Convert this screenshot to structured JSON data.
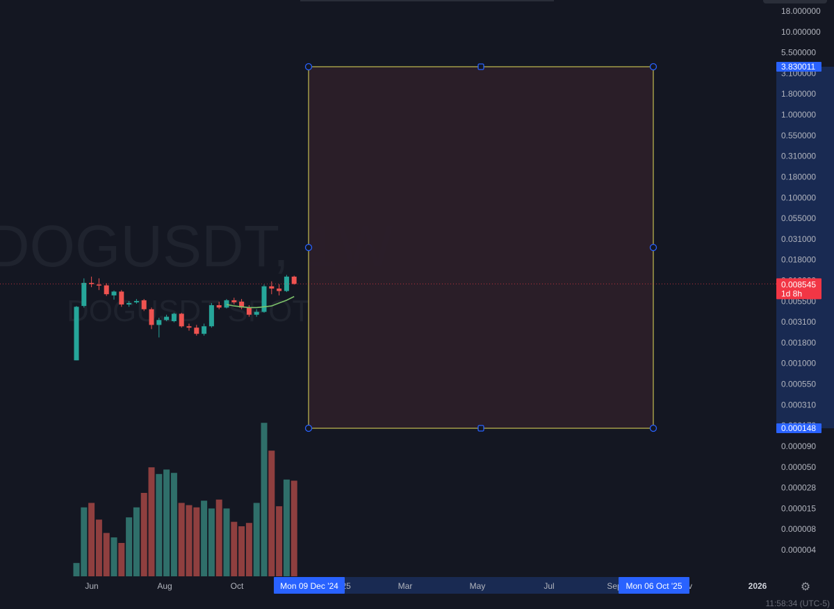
{
  "watermark": {
    "symbol_line": "DOGUSDT, 1W",
    "sub_line": "DOGUSDT SPOT"
  },
  "colors": {
    "background": "#141722",
    "up": "#26a69a",
    "down": "#ef5350",
    "up_volume": "#2f6f6a",
    "down_volume": "#8f3f3f",
    "ma_line": "#7ec36b",
    "rect_border": "#e6df5a",
    "rect_fill": "#2b1f29",
    "handle": "#2962ff",
    "axis_highlight": "#1e3a7a",
    "label_blue": "#2962ff",
    "label_red": "#f23645"
  },
  "price_axis": {
    "labels": [
      "18.000000",
      "10.000000",
      "5.500000",
      "3.100000",
      "1.800000",
      "1.000000",
      "0.550000",
      "0.310000",
      "0.180000",
      "0.100000",
      "0.055000",
      "0.031000",
      "0.018000",
      "0.010000",
      "0.005500",
      "0.003100",
      "0.001800",
      "0.001000",
      "0.000550",
      "0.000310",
      "0.000170",
      "0.000090",
      "0.000050",
      "0.000028",
      "0.000015",
      "0.000008",
      "0.000004"
    ],
    "range_top_label": "3.830011",
    "range_bottom_label": "0.000148",
    "last_price_label": "0.008545",
    "countdown_label": "1d 8h"
  },
  "time_axis": {
    "labels": [
      "Jun",
      "Aug",
      "Oct",
      "'25",
      "Mar",
      "May",
      "Jul",
      "Sep",
      "v",
      "2026"
    ],
    "range_start_label": "Mon 09 Dec '24",
    "range_end_label": "Mon 06 Oct '25"
  },
  "footer": {
    "clock_text": "11:58:34 (UTC-5)"
  },
  "settings_icon": "gear-icon",
  "chart_data": {
    "type": "candlestick",
    "symbol": "DOGUSDT",
    "interval": "1W",
    "log_scale": true,
    "ylim": [
      0.000148,
      3.830011
    ],
    "candles": [
      {
        "o": 0.001,
        "h": 0.0046,
        "l": 0.001,
        "c": 0.0045,
        "dir": "up"
      },
      {
        "o": 0.0046,
        "h": 0.01,
        "l": 0.0044,
        "c": 0.0088,
        "dir": "up"
      },
      {
        "o": 0.0088,
        "h": 0.0105,
        "l": 0.0078,
        "c": 0.0085,
        "dir": "down"
      },
      {
        "o": 0.0084,
        "h": 0.01,
        "l": 0.0072,
        "c": 0.0082,
        "dir": "down"
      },
      {
        "o": 0.0082,
        "h": 0.0087,
        "l": 0.0061,
        "c": 0.0064,
        "dir": "down"
      },
      {
        "o": 0.0062,
        "h": 0.0071,
        "l": 0.0055,
        "c": 0.0069,
        "dir": "up"
      },
      {
        "o": 0.0069,
        "h": 0.0072,
        "l": 0.0045,
        "c": 0.0048,
        "dir": "down"
      },
      {
        "o": 0.0048,
        "h": 0.0053,
        "l": 0.0045,
        "c": 0.005,
        "dir": "up"
      },
      {
        "o": 0.0051,
        "h": 0.0056,
        "l": 0.0049,
        "c": 0.0053,
        "dir": "up"
      },
      {
        "o": 0.0054,
        "h": 0.0056,
        "l": 0.004,
        "c": 0.0042,
        "dir": "down"
      },
      {
        "o": 0.0042,
        "h": 0.0044,
        "l": 0.0024,
        "c": 0.0027,
        "dir": "down"
      },
      {
        "o": 0.0027,
        "h": 0.0033,
        "l": 0.0019,
        "c": 0.0031,
        "dir": "up"
      },
      {
        "o": 0.0031,
        "h": 0.0036,
        "l": 0.003,
        "c": 0.0034,
        "dir": "up"
      },
      {
        "o": 0.003,
        "h": 0.0038,
        "l": 0.0029,
        "c": 0.0037,
        "dir": "up"
      },
      {
        "o": 0.0037,
        "h": 0.0038,
        "l": 0.0025,
        "c": 0.0026,
        "dir": "down"
      },
      {
        "o": 0.0026,
        "h": 0.0028,
        "l": 0.0023,
        "c": 0.0025,
        "dir": "down"
      },
      {
        "o": 0.0025,
        "h": 0.0027,
        "l": 0.002,
        "c": 0.0021,
        "dir": "down"
      },
      {
        "o": 0.0021,
        "h": 0.0028,
        "l": 0.002,
        "c": 0.0026,
        "dir": "up"
      },
      {
        "o": 0.0026,
        "h": 0.005,
        "l": 0.0025,
        "c": 0.0047,
        "dir": "up"
      },
      {
        "o": 0.0047,
        "h": 0.0052,
        "l": 0.0042,
        "c": 0.0044,
        "dir": "down"
      },
      {
        "o": 0.0044,
        "h": 0.0056,
        "l": 0.0043,
        "c": 0.0054,
        "dir": "up"
      },
      {
        "o": 0.0054,
        "h": 0.0058,
        "l": 0.0048,
        "c": 0.0051,
        "dir": "down"
      },
      {
        "o": 0.0052,
        "h": 0.0056,
        "l": 0.0042,
        "c": 0.0044,
        "dir": "down"
      },
      {
        "o": 0.0044,
        "h": 0.0047,
        "l": 0.0034,
        "c": 0.0036,
        "dir": "down"
      },
      {
        "o": 0.0036,
        "h": 0.0042,
        "l": 0.0034,
        "c": 0.0039,
        "dir": "up"
      },
      {
        "o": 0.0039,
        "h": 0.0084,
        "l": 0.0038,
        "c": 0.008,
        "dir": "up"
      },
      {
        "o": 0.008,
        "h": 0.0092,
        "l": 0.0064,
        "c": 0.0075,
        "dir": "down"
      },
      {
        "o": 0.0075,
        "h": 0.0085,
        "l": 0.0062,
        "c": 0.007,
        "dir": "down"
      },
      {
        "o": 0.007,
        "h": 0.011,
        "l": 0.0068,
        "c": 0.0105,
        "dir": "up"
      },
      {
        "o": 0.0105,
        "h": 0.0108,
        "l": 0.0084,
        "c": 0.00855,
        "dir": "down"
      }
    ],
    "volumes": [
      0.12,
      0.62,
      0.66,
      0.51,
      0.39,
      0.35,
      0.3,
      0.53,
      0.62,
      0.75,
      0.98,
      0.92,
      0.96,
      0.93,
      0.66,
      0.64,
      0.62,
      0.68,
      0.61,
      0.69,
      0.61,
      0.49,
      0.45,
      0.48,
      0.66,
      1.38,
      1.13,
      0.63,
      0.87,
      0.86
    ],
    "moving_average": [
      0.0048,
      0.0046,
      0.0045,
      0.0044,
      0.0044,
      0.0045,
      0.0046,
      0.005,
      0.0054,
      0.006
    ],
    "last_price": 0.008545,
    "date_range_rectangle": {
      "start": "Mon 09 Dec '24",
      "end": "Mon 06 Oct '25",
      "price_high": 3.830011,
      "price_low": 0.000148
    }
  }
}
